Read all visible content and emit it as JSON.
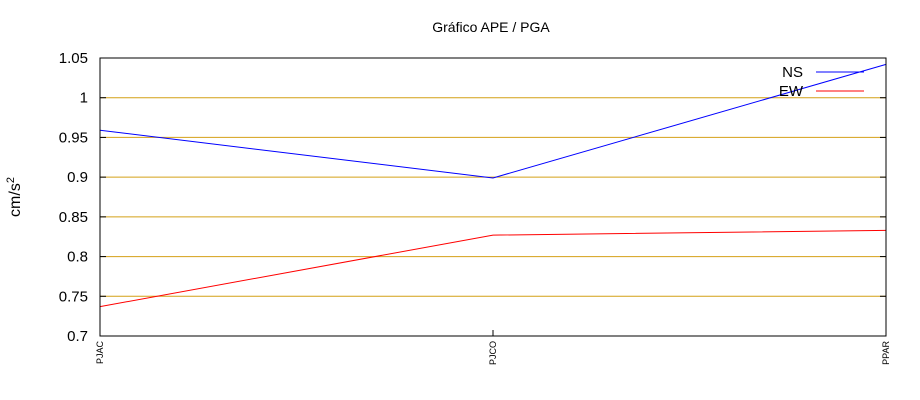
{
  "chart_data": {
    "type": "line",
    "title": "Gráfico  APE / PGA",
    "ylabel_base": "cm/s",
    "ylabel_sup": "2",
    "xlabel": "",
    "categories": [
      "PJAC",
      "PJCO",
      "PPAR"
    ],
    "ylim": [
      0.7,
      1.05
    ],
    "yticks": [
      0.7,
      0.75,
      0.8,
      0.85,
      0.9,
      0.95,
      1,
      1.05
    ],
    "ytick_labels": [
      "0.7",
      "0.75",
      "0.8",
      "0.85",
      "0.9",
      "0.95",
      "1",
      "1.05"
    ],
    "grid": true,
    "grid_color": "#d4a017",
    "legend_position": "top-right",
    "series": [
      {
        "name": "NS",
        "color": "#0000ff",
        "values": [
          0.959,
          0.899,
          1.042
        ]
      },
      {
        "name": "EW",
        "color": "#ff0000",
        "values": [
          0.737,
          0.827,
          0.833
        ]
      }
    ]
  }
}
